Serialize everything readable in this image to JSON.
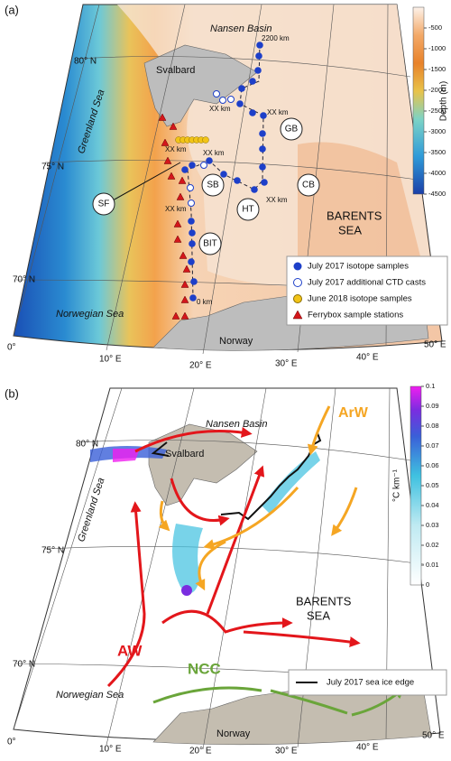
{
  "panel_a": {
    "label": "(a)",
    "nansen_basin": "Nansen Basin",
    "svalbard": "Svalbard",
    "greenland_sea": "Greenland Sea",
    "norwegian_sea": "Norwegian Sea",
    "barents_sea": [
      "BARENTS",
      "SEA"
    ],
    "norway": "Norway",
    "regions": {
      "GB": "GB",
      "SB": "SB",
      "CB": "CB",
      "HT": "HT",
      "SF": "SF",
      "BIT": "BIT"
    },
    "distance_labels": [
      "2200 km",
      "XX km",
      "XX km",
      "XX km",
      "XX km",
      "XX km",
      "XX km",
      "0 km"
    ],
    "lat_labels": [
      "80° N",
      "75° N",
      "70° N"
    ],
    "lon_labels": [
      "0°",
      "10° E",
      "20° E",
      "30° E",
      "40° E",
      "50° E"
    ],
    "colorbar": {
      "title": "Depth (m)",
      "lim": [
        0,
        -4500
      ],
      "ticks": [
        -500,
        -1000,
        -1500,
        -2000,
        -2500,
        -3000,
        -3500,
        -4000,
        -4500
      ]
    },
    "legend": [
      "July 2017 isotope samples",
      "July 2017 additional CTD casts",
      "June 2018 isotope samples",
      "Ferrybox sample stations"
    ]
  },
  "panel_b": {
    "label": "(b)",
    "nansen_basin": "Nansen Basin",
    "arw": "ArW",
    "svalbard": "Svalbard",
    "greenland_sea": "Greenland Sea",
    "barents_sea": [
      "BARENTS",
      "SEA"
    ],
    "aw": "AW",
    "ncc": "NCC",
    "norwegian_sea": "Norwegian Sea",
    "norway": "Norway",
    "lat_labels": [
      "80° N",
      "75° N",
      "70° N"
    ],
    "lon_labels": [
      "0°",
      "10° E",
      "20° E",
      "30° E",
      "40° E",
      "50° E"
    ],
    "colorbar": {
      "title": "°C km⁻¹",
      "lim": [
        0,
        0.1
      ],
      "ticks": [
        0.1,
        0.09,
        0.08,
        0.07,
        0.06,
        0.05,
        0.04,
        0.03,
        0.02,
        0.01,
        0
      ]
    },
    "legend": [
      "July 2017 sea ice edge"
    ]
  }
}
